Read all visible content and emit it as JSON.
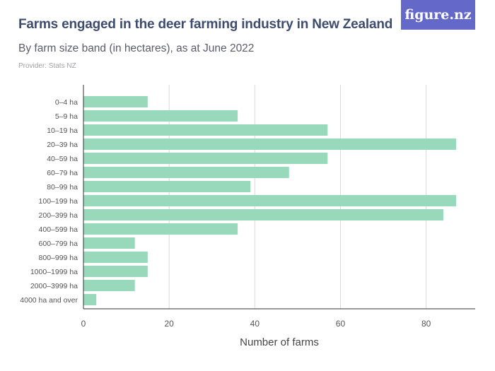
{
  "header": {
    "title": "Farms engaged in the deer farming industry in New Zealand",
    "subtitle": "By farm size band (in hectares), as at June 2022",
    "provider": "Provider: Stats NZ",
    "logo": "figure.nz"
  },
  "colors": {
    "bar": "#98d9bb",
    "grid": "#d9d9d9",
    "axis": "#333333",
    "title": "#3e4c6d",
    "logo_bg": "#6468c9"
  },
  "chart_data": {
    "type": "bar",
    "orientation": "horizontal",
    "categories": [
      "0–4 ha",
      "5–9 ha",
      "10–19 ha",
      "20–39 ha",
      "40–59 ha",
      "60–79 ha",
      "80–99 ha",
      "100–199 ha",
      "200–399 ha",
      "400–599 ha",
      "600–799 ha",
      "800–999 ha",
      "1000–1999 ha",
      "2000–3999 ha",
      "4000 ha and over"
    ],
    "values": [
      15,
      36,
      57,
      87,
      57,
      48,
      39,
      87,
      84,
      36,
      12,
      15,
      15,
      12,
      3
    ],
    "title": "Farms engaged in the deer farming industry in New Zealand",
    "xlabel": "Number of farms",
    "ylabel": "",
    "xlim": [
      0,
      90
    ],
    "xticks": [
      0,
      20,
      40,
      60,
      80
    ],
    "grid": "vertical"
  }
}
